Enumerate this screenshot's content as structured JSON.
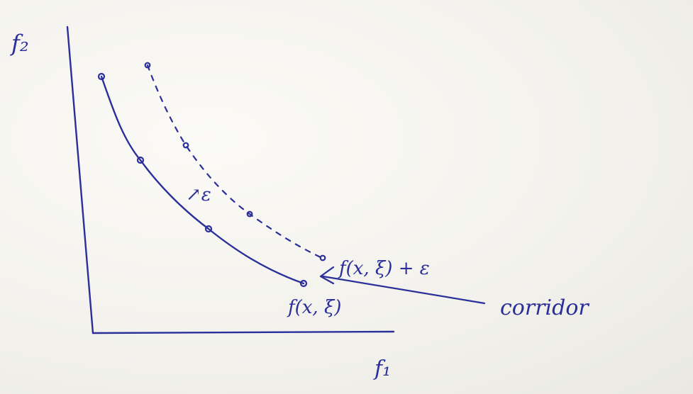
{
  "axes": {
    "y_label": "f₂",
    "x_label": "f₁"
  },
  "annotations": {
    "epsilon_marker": "↗ε",
    "upper_curve_label": "f(x, ξ) + ε",
    "lower_curve_label": "f(x, ξ)",
    "corridor_label": "corridor"
  },
  "styles": {
    "ink_color": "#2b2f9a",
    "paper_color": "#f4f3ee"
  }
}
